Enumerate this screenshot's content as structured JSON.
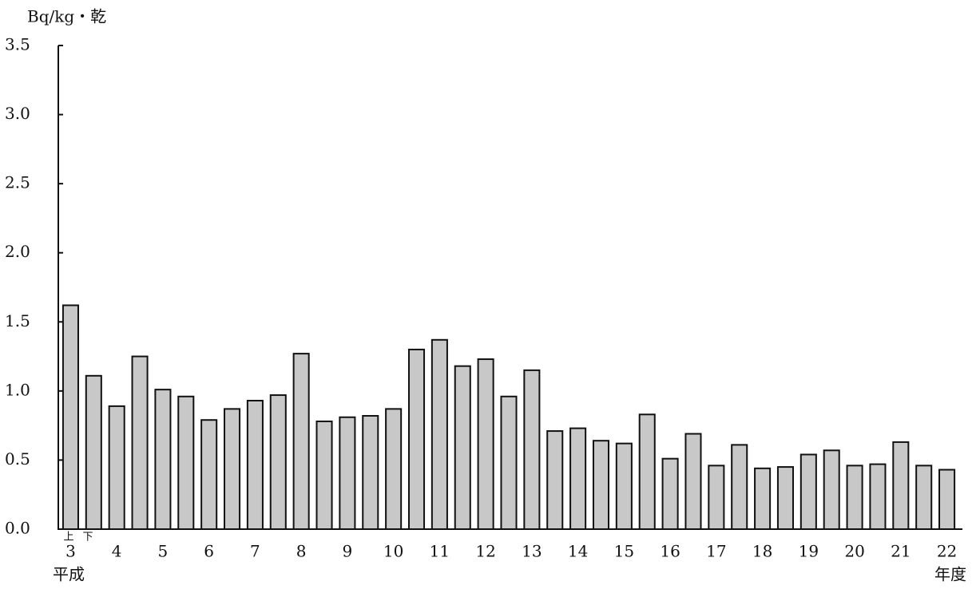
{
  "chart_data": {
    "type": "bar",
    "y_axis_label": "Bq/kg・乾",
    "categories": [
      "3",
      null,
      "4",
      null,
      "5",
      null,
      "6",
      null,
      "7",
      null,
      "8",
      null,
      "9",
      null,
      "10",
      null,
      "11",
      null,
      "12",
      null,
      "13",
      null,
      "14",
      null,
      "15",
      null,
      "16",
      null,
      "17",
      null,
      "18",
      null,
      "19",
      null,
      "20",
      null,
      "21",
      null,
      "22"
    ],
    "values": [
      1.62,
      1.11,
      0.89,
      1.25,
      1.01,
      0.96,
      0.79,
      0.87,
      0.93,
      0.97,
      1.27,
      0.78,
      0.81,
      0.82,
      0.87,
      1.3,
      1.37,
      1.18,
      1.23,
      0.96,
      1.15,
      0.71,
      0.73,
      0.64,
      0.62,
      0.83,
      0.51,
      0.69,
      0.46,
      0.61,
      0.44,
      0.45,
      0.54,
      0.57,
      0.46,
      0.47,
      0.63,
      0.46,
      0.43
    ],
    "color": "#c8c8c8",
    "ylim": [
      0,
      3.5
    ],
    "yticks": [
      {
        "value": 0,
        "label": "0.0"
      },
      0.5,
      {
        "value": 1,
        "label": "1.0"
      },
      1.5,
      {
        "value": 2,
        "label": "2.0"
      },
      2.5,
      {
        "value": 3,
        "label": "3.0"
      },
      3.5
    ],
    "grid": false,
    "annotations": {
      "first_half": "上",
      "second_half": "下",
      "era": "平成",
      "x_unit": "年度"
    }
  }
}
